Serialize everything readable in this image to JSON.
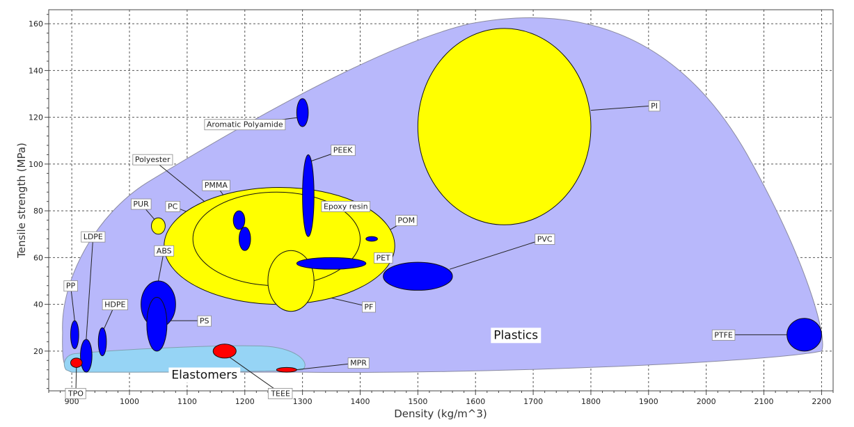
{
  "chart_data": {
    "type": "bubble-region",
    "xlabel": "Density (kg/m^3)",
    "ylabel": "Tensile strength (MPa)",
    "xlim": [
      860,
      2220
    ],
    "ylim": [
      3,
      166
    ],
    "xticks": [
      900,
      1000,
      1100,
      1200,
      1300,
      1400,
      1500,
      1600,
      1700,
      1800,
      1900,
      2000,
      2100,
      2200
    ],
    "yticks": [
      20,
      40,
      60,
      80,
      100,
      120,
      140,
      160
    ],
    "grid": true,
    "colors": {
      "plastics_region": "#b8b8fb",
      "elastomers_region": "#96d4f5",
      "yellow": "#ffff00",
      "blue": "#0000ff",
      "red": "#ff0000"
    },
    "groups": [
      {
        "name": "Plastics",
        "label_at": [
          1670,
          27
        ]
      },
      {
        "name": "Elastomers",
        "label_at": [
          1130,
          10
        ]
      }
    ],
    "materials": [
      {
        "name": "Epoxy resin",
        "x": [
          1060,
          1460
        ],
        "y": [
          40,
          90
        ],
        "color": "yellow",
        "label_at": [
          1375,
          82
        ],
        "leader_to": [
          1365,
          71
        ]
      },
      {
        "name": "Polyester",
        "x": [
          1110,
          1400
        ],
        "y": [
          48,
          88
        ],
        "color": "yellow",
        "label_at": [
          1040,
          102
        ],
        "leader_to": [
          1130,
          84
        ]
      },
      {
        "name": "PI",
        "x": [
          1500,
          1800
        ],
        "y": [
          74,
          158
        ],
        "color": "yellow",
        "label_at": [
          1910,
          125
        ],
        "leader_to": [
          1800,
          123
        ]
      },
      {
        "name": "PF",
        "x": [
          1240,
          1320
        ],
        "y": [
          37,
          63
        ],
        "color": "yellow",
        "label_at": [
          1415,
          39
        ],
        "leader_to": [
          1310,
          45
        ]
      },
      {
        "name": "PUR",
        "x": [
          1038,
          1062
        ],
        "y": [
          70,
          77
        ],
        "color": "yellow",
        "label_at": [
          1020,
          83
        ],
        "leader_to": [
          1048,
          75
        ]
      },
      {
        "name": "PEEK",
        "x": [
          1300,
          1320
        ],
        "y": [
          69,
          104
        ],
        "color": "blue",
        "label_at": [
          1370,
          106
        ],
        "leader_to": [
          1312,
          101
        ]
      },
      {
        "name": "Aromatic Polyamide",
        "x": [
          1290,
          1310
        ],
        "y": [
          116,
          128
        ],
        "color": "blue",
        "label_at": [
          1200,
          117
        ],
        "leader_to": [
          1296,
          120
        ]
      },
      {
        "name": "PMMA",
        "x": [
          1180,
          1200
        ],
        "y": [
          72,
          80
        ],
        "color": "blue",
        "label_at": [
          1150,
          91
        ],
        "leader_to": [
          1186,
          79
        ]
      },
      {
        "name": "PC",
        "x": [
          1190,
          1210
        ],
        "y": [
          63,
          73
        ],
        "color": "blue",
        "label_at": [
          1075,
          82
        ],
        "leader_to": [
          1197,
          70
        ]
      },
      {
        "name": "PET",
        "x": [
          1290,
          1410
        ],
        "y": [
          55,
          60
        ],
        "color": "blue",
        "label_at": [
          1440,
          60
        ],
        "leader_to": [
          1405,
          58
        ]
      },
      {
        "name": "POM",
        "x": [
          1410,
          1430
        ],
        "y": [
          67,
          69
        ],
        "color": "blue",
        "label_at": [
          1480,
          76
        ],
        "leader_to": [
          1425,
          68
        ]
      },
      {
        "name": "PVC",
        "x": [
          1440,
          1560
        ],
        "y": [
          46,
          58
        ],
        "color": "blue",
        "label_at": [
          1720,
          68
        ],
        "leader_to": [
          1555,
          55
        ]
      },
      {
        "name": "PTFE",
        "x": [
          2140,
          2200
        ],
        "y": [
          20,
          34
        ],
        "color": "blue",
        "label_at": [
          2030,
          27
        ],
        "leader_to": [
          2140,
          27
        ]
      },
      {
        "name": "ABS",
        "x": [
          1020,
          1080
        ],
        "y": [
          30,
          50
        ],
        "color": "blue",
        "label_at": [
          1060,
          63
        ],
        "leader_to": [
          1050,
          50
        ]
      },
      {
        "name": "PS",
        "x": [
          1030,
          1065
        ],
        "y": [
          20,
          43
        ],
        "color": "blue",
        "label_at": [
          1130,
          33
        ],
        "leader_to": [
          1063,
          33
        ]
      },
      {
        "name": "HDPE",
        "x": [
          946,
          960
        ],
        "y": [
          18,
          30
        ],
        "color": "blue",
        "label_at": [
          975,
          40
        ],
        "leader_to": [
          953,
          28
        ]
      },
      {
        "name": "LDPE",
        "x": [
          915,
          935
        ],
        "y": [
          11,
          25
        ],
        "color": "blue",
        "label_at": [
          937,
          69
        ],
        "leader_to": [
          925,
          25
        ]
      },
      {
        "name": "PP",
        "x": [
          898,
          912
        ],
        "y": [
          21,
          33
        ],
        "color": "blue",
        "label_at": [
          898,
          48
        ],
        "leader_to": [
          905,
          33
        ]
      },
      {
        "name": "TEEE",
        "x": [
          1145,
          1185
        ],
        "y": [
          17,
          23
        ],
        "color": "red",
        "label_at": [
          1262,
          2
        ],
        "leader_to": [
          1170,
          18
        ]
      },
      {
        "name": "MPR",
        "x": [
          1255,
          1290
        ],
        "y": [
          11,
          13
        ],
        "color": "red",
        "label_at": [
          1397,
          15
        ],
        "leader_to": [
          1288,
          12
        ]
      },
      {
        "name": "TPO",
        "x": [
          898,
          918
        ],
        "y": [
          13,
          17
        ],
        "color": "red",
        "label_at": [
          907,
          2
        ],
        "leader_to": [
          908,
          13
        ]
      }
    ]
  }
}
